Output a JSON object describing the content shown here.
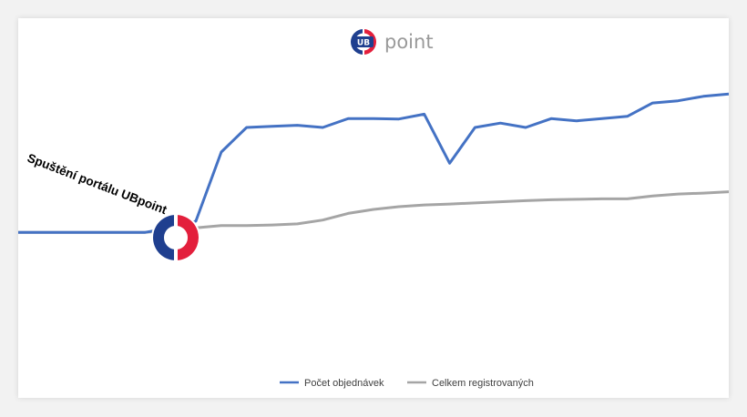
{
  "logo": {
    "badge": "UB",
    "word": "point",
    "colors": {
      "blue": "#1f3f8f",
      "red": "#e31f3c"
    }
  },
  "chart_data": {
    "type": "line",
    "title": "",
    "xlabel": "",
    "ylabel": "",
    "grid": false,
    "legend_position": "bottom-center",
    "annotation": "Spuštění portálu UBpoint",
    "x": [
      1,
      2,
      3,
      4,
      5,
      6,
      7,
      8,
      9,
      10,
      11,
      12,
      13,
      14,
      15,
      16,
      17,
      18,
      19,
      20,
      21,
      22,
      23,
      24,
      25,
      26,
      27,
      28,
      29
    ],
    "ylim": [
      0,
      100
    ],
    "series": [
      {
        "name": "Počet objednávek",
        "color": "#4472c4",
        "values": [
          4,
          4,
          4,
          4,
          4,
          4,
          6,
          9,
          40,
          51,
          51.5,
          52,
          51,
          55,
          55,
          54.8,
          57,
          35,
          51,
          53,
          51,
          55,
          54,
          55,
          56,
          62,
          63,
          65,
          66
        ]
      },
      {
        "name": "Celkem registrovaných",
        "color": "#a5a5a5",
        "values": [
          4,
          4,
          4,
          4,
          4,
          4,
          5,
          6,
          7,
          7,
          7.3,
          7.8,
          9.5,
          12.5,
          14.3,
          15.5,
          16.3,
          16.7,
          17.2,
          17.7,
          18.2,
          18.6,
          18.8,
          19,
          19,
          20.3,
          21.2,
          21.6,
          22.2
        ]
      }
    ]
  }
}
